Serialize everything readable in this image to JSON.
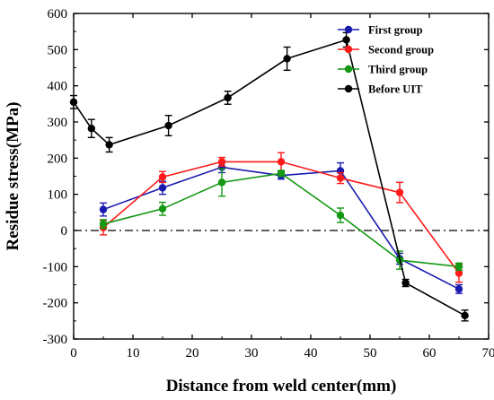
{
  "chart_data": {
    "type": "line",
    "xlabel": "Distance from  weld center(mm)",
    "ylabel": "Residue stress(MPa)",
    "xlim": [
      0,
      70
    ],
    "ylim": [
      -300,
      600
    ],
    "xticks": [
      0,
      10,
      20,
      30,
      40,
      50,
      60,
      70
    ],
    "yticks": [
      -300,
      -200,
      -100,
      0,
      100,
      200,
      300,
      400,
      500,
      600
    ],
    "reference_line": {
      "y": 0,
      "style": "dash-dot"
    },
    "legend_position": "top-right",
    "grid": false,
    "series": [
      {
        "name": "First group",
        "color": "#1a1aae",
        "points": [
          {
            "x": 5,
            "y": 58,
            "err": 18
          },
          {
            "x": 15,
            "y": 118,
            "err": 18
          },
          {
            "x": 25,
            "y": 175,
            "err": 15
          },
          {
            "x": 35,
            "y": 152,
            "err": 10
          },
          {
            "x": 45,
            "y": 165,
            "err": 22
          },
          {
            "x": 55,
            "y": -78,
            "err": 15
          },
          {
            "x": 65,
            "y": -162,
            "err": 12
          }
        ]
      },
      {
        "name": "Second group",
        "color": "#ff1a1a",
        "points": [
          {
            "x": 5,
            "y": 8,
            "err": 20
          },
          {
            "x": 15,
            "y": 148,
            "err": 15
          },
          {
            "x": 25,
            "y": 190,
            "err": 12
          },
          {
            "x": 35,
            "y": 190,
            "err": 25
          },
          {
            "x": 45,
            "y": 145,
            "err": 15
          },
          {
            "x": 55,
            "y": 105,
            "err": 28
          },
          {
            "x": 65,
            "y": -118,
            "err": 25
          }
        ]
      },
      {
        "name": "Third group",
        "color": "#139913",
        "points": [
          {
            "x": 5,
            "y": 18,
            "err": 12
          },
          {
            "x": 15,
            "y": 60,
            "err": 18
          },
          {
            "x": 25,
            "y": 133,
            "err": 38
          },
          {
            "x": 35,
            "y": 158,
            "err": 8
          },
          {
            "x": 45,
            "y": 42,
            "err": 20
          },
          {
            "x": 55,
            "y": -82,
            "err": 25
          },
          {
            "x": 65,
            "y": -100,
            "err": 10
          }
        ]
      },
      {
        "name": "Before UIT",
        "color": "#000000",
        "points": [
          {
            "x": 0,
            "y": 355,
            "err": 18
          },
          {
            "x": 3,
            "y": 282,
            "err": 25
          },
          {
            "x": 6,
            "y": 237,
            "err": 20
          },
          {
            "x": 16,
            "y": 290,
            "err": 28
          },
          {
            "x": 26,
            "y": 367,
            "err": 18
          },
          {
            "x": 36,
            "y": 475,
            "err": 32
          },
          {
            "x": 46,
            "y": 527,
            "err": 20
          },
          {
            "x": 56,
            "y": -145,
            "err": 10
          },
          {
            "x": 66,
            "y": -235,
            "err": 15
          }
        ]
      }
    ]
  }
}
